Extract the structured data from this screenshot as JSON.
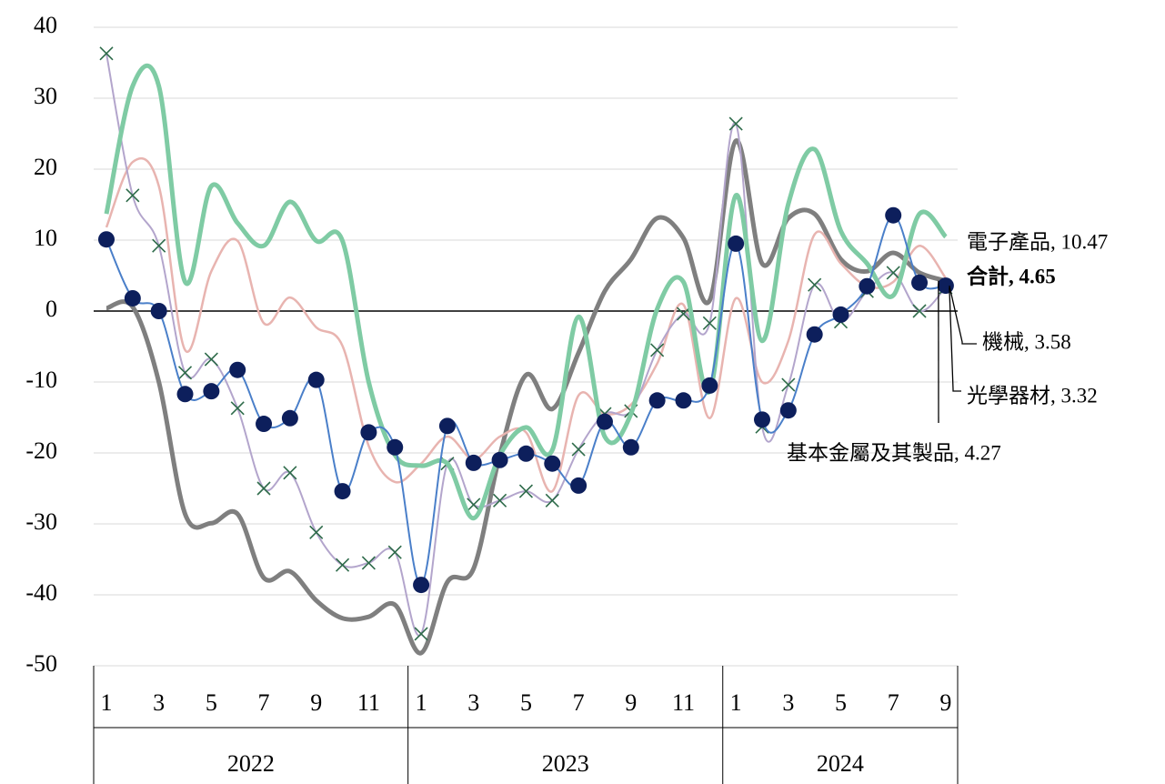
{
  "chart_data": {
    "type": "line",
    "categories": [
      "1",
      null,
      "3",
      null,
      "5",
      null,
      "7",
      null,
      "9",
      null,
      "11",
      null,
      "1",
      null,
      "3",
      null,
      "5",
      null,
      "7",
      null,
      "9",
      null,
      "11",
      null,
      "1",
      null,
      "3",
      null,
      "5",
      null,
      "7",
      null,
      "9"
    ],
    "years": [
      "2022",
      "2023",
      "2024"
    ],
    "ylim": [
      -50,
      40
    ],
    "yticks": [
      -50,
      -40,
      -30,
      -20,
      -10,
      0,
      10,
      20,
      30,
      40
    ],
    "grid": true,
    "negative_tick_color": "#e00000",
    "series": [
      {
        "label": "基本金屬及其製品, 4.27",
        "color": "#7f7f7f",
        "width": 5,
        "marker": "none",
        "values": [
          0.4,
          0.6,
          -10,
          -28.6,
          -29.9,
          -28.6,
          -37.6,
          -36.7,
          -40.8,
          -43.3,
          -43.1,
          -41.4,
          -48.2,
          -38.2,
          -36.3,
          -20.3,
          -9,
          -13.8,
          -5.9,
          2.8,
          7.3,
          13.1,
          10.3,
          1.5,
          24,
          6.7,
          13.1,
          13.7,
          7.3,
          5.6,
          8.2,
          5.4,
          4.27
        ]
      },
      {
        "label": "合計, 4.65",
        "label_color": "#e00000",
        "color": "#e8b4b0",
        "width": 2.5,
        "marker": "none",
        "values": [
          11.8,
          21.0,
          17.6,
          -5.5,
          5.6,
          9.9,
          -1.7,
          1.9,
          -2.3,
          -4.9,
          -19,
          -24.1,
          -21.5,
          -17.7,
          -20.9,
          -17.7,
          -17.1,
          -25.4,
          -11.9,
          -14.5,
          -13.2,
          -7.4,
          0.9,
          -15.1,
          1.8,
          -10,
          -4.2,
          10.8,
          6.7,
          3.5,
          4.1,
          9.2,
          4.65
        ]
      },
      {
        "label": "光學器材, 3.32",
        "color": "#b3a5cc",
        "width": 2,
        "marker": "x",
        "marker_color": "#2e6b4a",
        "values": [
          36.3,
          16.3,
          9.2,
          -8.7,
          -6.8,
          -13.7,
          -25.0,
          -22.8,
          -31.2,
          -35.8,
          -35.5,
          -34.0,
          -45.5,
          -21.5,
          -27.3,
          -26.7,
          -25.4,
          -26.7,
          -19.5,
          -14.5,
          -14.1,
          -5.5,
          -0.4,
          -1.7,
          26.4,
          -16.3,
          -10.4,
          3.7,
          -1.5,
          2.8,
          5.4,
          0,
          3.32
        ]
      },
      {
        "label": "電子產品, 10.47",
        "color": "#7fcba4",
        "width": 5,
        "marker": "none",
        "values": [
          13.7,
          31.7,
          31.7,
          4.1,
          17.6,
          12.4,
          9.2,
          15.4,
          9.9,
          9.9,
          -10,
          -20.3,
          -21.8,
          -21.5,
          -29.2,
          -20.3,
          -16.4,
          -19.6,
          -0.8,
          -17.7,
          -14.5,
          0.3,
          4.1,
          -11.3,
          16.3,
          -4.2,
          15.1,
          22.8,
          11.3,
          6.7,
          2.2,
          13.7,
          10.47
        ]
      },
      {
        "label": "機械, 3.58",
        "color": "#4a7fc9",
        "width": 2,
        "marker": "circle",
        "marker_color": "#0d1f5c",
        "values": [
          10.1,
          1.8,
          0,
          -11.7,
          -11.3,
          -8.3,
          -15.9,
          -15.1,
          -9.7,
          -25.4,
          -17.1,
          -19.2,
          -38.6,
          -16.2,
          -21.4,
          -21.0,
          -20.1,
          -21.5,
          -24.6,
          -15.6,
          -19.2,
          -12.6,
          -12.6,
          -10.5,
          9.5,
          -15.3,
          -14.0,
          -3.3,
          -0.5,
          3.5,
          13.5,
          4.0,
          3.58
        ]
      }
    ]
  }
}
